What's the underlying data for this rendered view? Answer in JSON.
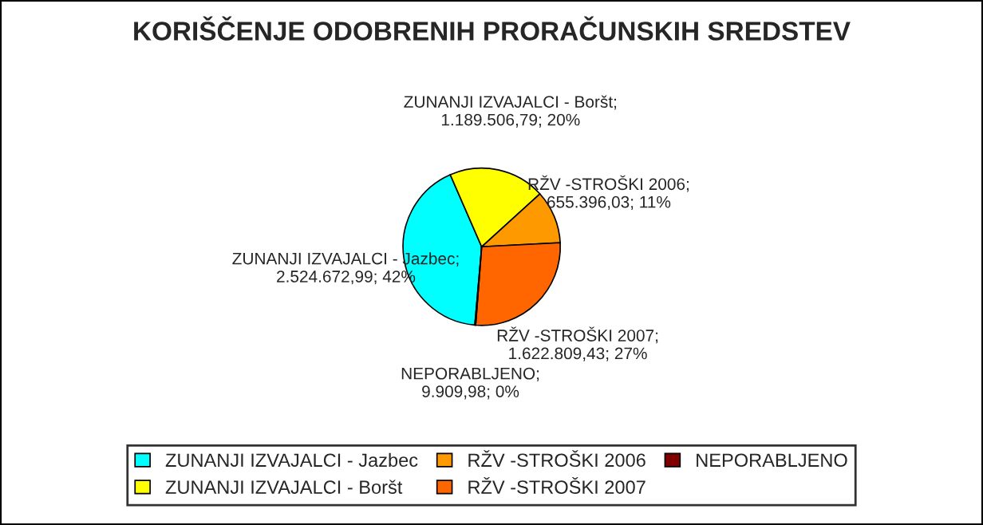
{
  "chart_data": {
    "type": "pie",
    "title": "KORIŠČENJE ODOBRENIH PRORAČUNSKIH SREDSTEV",
    "categories": [
      "ZUNANJI IZVAJALCI - Jazbec",
      "ZUNANJI IZVAJALCI - Boršt",
      "RŽV -STROŠKI 2006",
      "RŽV -STROŠKI 2007",
      "NEPORABLJENO"
    ],
    "values": [
      2524672.99,
      1189506.79,
      655396.03,
      1622809.43,
      9909.98
    ],
    "value_labels": [
      ";\n2.524.672,99; 42%",
      ";\n1.189.506,79; 20%",
      ";\n655.396,03; 11%",
      ";\n1.622.809,43; 27%",
      ";\n9.909,98; 0%"
    ],
    "colors": [
      "#00ffff",
      "#ffff00",
      "#ff9900",
      "#ff6600",
      "#800000"
    ],
    "legend": "bottom"
  }
}
